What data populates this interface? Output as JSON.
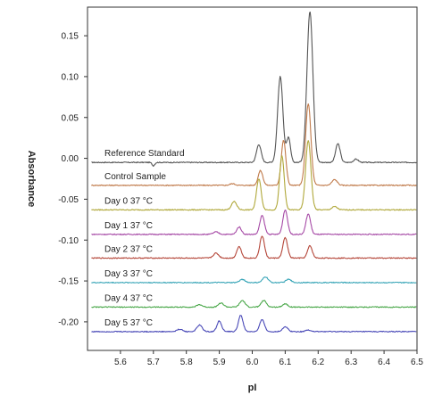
{
  "chart_data": {
    "type": "line",
    "title": "",
    "xlabel": "pI",
    "ylabel": "Absorbance",
    "xlim": [
      5.5,
      6.5
    ],
    "ylim": [
      -0.235,
      0.185
    ],
    "xticks": [
      5.6,
      5.7,
      5.8,
      5.9,
      6.0,
      6.1,
      6.2,
      6.3,
      6.4,
      6.5
    ],
    "yticks": [
      0.15,
      0.1,
      0.05,
      0.0,
      -0.05,
      -0.1,
      -0.15,
      -0.2
    ],
    "ytick_labels": [
      "0.15",
      "0.10",
      "0.05",
      "0.00",
      "-0.05",
      "-0.10",
      "-0.15",
      "-0.20"
    ],
    "grid": false,
    "legend": "none",
    "series": [
      {
        "name": "Reference Standard",
        "color": "#555555",
        "baseline": -0.005,
        "peaks": [
          [
            5.7,
            -0.004,
            0.004
          ],
          [
            6.02,
            0.022,
            0.007
          ],
          [
            6.085,
            0.105,
            0.008
          ],
          [
            6.11,
            0.03,
            0.006
          ],
          [
            6.175,
            0.185,
            0.009
          ],
          [
            6.26,
            0.023,
            0.007
          ],
          [
            6.315,
            0.004,
            0.007
          ]
        ]
      },
      {
        "name": "Control Sample",
        "color": "#c07a4a",
        "baseline": -0.033,
        "peaks": [
          [
            5.94,
            0.002,
            0.008
          ],
          [
            6.025,
            0.018,
            0.007
          ],
          [
            6.095,
            0.055,
            0.007
          ],
          [
            6.17,
            0.1,
            0.008
          ],
          [
            6.25,
            0.007,
            0.008
          ]
        ]
      },
      {
        "name": "Day 0 37 °C",
        "color": "#b0a83a",
        "baseline": -0.063,
        "peaks": [
          [
            5.945,
            0.01,
            0.008
          ],
          [
            6.02,
            0.038,
            0.007
          ],
          [
            6.09,
            0.066,
            0.007
          ],
          [
            6.17,
            0.085,
            0.008
          ],
          [
            6.25,
            0.004,
            0.008
          ]
        ]
      },
      {
        "name": "Day 1 37 °C",
        "color": "#a64aa6",
        "baseline": -0.093,
        "peaks": [
          [
            5.89,
            0.003,
            0.008
          ],
          [
            5.96,
            0.009,
            0.007
          ],
          [
            6.03,
            0.023,
            0.007
          ],
          [
            6.1,
            0.03,
            0.007
          ],
          [
            6.17,
            0.025,
            0.007
          ]
        ]
      },
      {
        "name": "Day 2 37 °C",
        "color": "#b5473a",
        "baseline": -0.122,
        "peaks": [
          [
            5.89,
            0.006,
            0.008
          ],
          [
            5.96,
            0.014,
            0.007
          ],
          [
            6.03,
            0.027,
            0.007
          ],
          [
            6.1,
            0.025,
            0.007
          ],
          [
            6.175,
            0.015,
            0.007
          ]
        ]
      },
      {
        "name": "Day 3 37 °C",
        "color": "#3aa6b8",
        "baseline": -0.152,
        "peaks": [
          [
            5.97,
            0.004,
            0.008
          ],
          [
            6.04,
            0.007,
            0.008
          ],
          [
            6.11,
            0.004,
            0.008
          ]
        ]
      },
      {
        "name": "Day 4 37 °C",
        "color": "#4aa84a",
        "baseline": -0.182,
        "peaks": [
          [
            5.84,
            0.003,
            0.008
          ],
          [
            5.905,
            0.005,
            0.008
          ],
          [
            5.97,
            0.008,
            0.008
          ],
          [
            6.035,
            0.008,
            0.008
          ],
          [
            6.1,
            0.004,
            0.008
          ]
        ]
      },
      {
        "name": "Day 5 37 °C",
        "color": "#4a4ab8",
        "baseline": -0.212,
        "peaks": [
          [
            5.78,
            0.003,
            0.008
          ],
          [
            5.84,
            0.008,
            0.008
          ],
          [
            5.9,
            0.013,
            0.007
          ],
          [
            5.965,
            0.02,
            0.007
          ],
          [
            6.03,
            0.015,
            0.007
          ],
          [
            6.1,
            0.006,
            0.008
          ],
          [
            6.17,
            0.002,
            0.008
          ]
        ]
      }
    ]
  }
}
